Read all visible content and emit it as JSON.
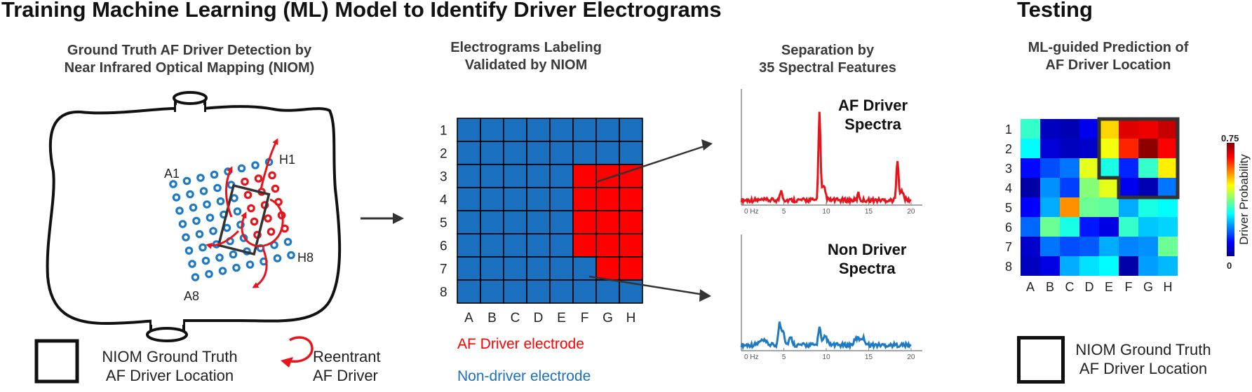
{
  "titles": {
    "training": "Training Machine Learning (ML) Model to Identify Driver Electrograms",
    "testing": "Testing"
  },
  "panel1": {
    "heading_line1": "Ground Truth AF Driver Detection by",
    "heading_line2": "Near Infrared Optical Mapping (NIOM)",
    "labels": {
      "a1": "A1",
      "h1": "H1",
      "a8": "A8",
      "h8": "H8"
    },
    "electrode_color": "#1f7ac4",
    "driver_color": "#e8141c",
    "legend": {
      "box_line1": "NIOM Ground Truth",
      "box_line2": "AF Driver Location",
      "reentrant_line1": "Reentrant",
      "reentrant_line2": "AF Driver"
    }
  },
  "panel2": {
    "heading_line1": "Electrograms Labeling",
    "heading_line2": "Validated by NIOM",
    "rows": [
      "1",
      "2",
      "3",
      "4",
      "5",
      "6",
      "7",
      "8"
    ],
    "cols": [
      "A",
      "B",
      "C",
      "D",
      "E",
      "F",
      "G",
      "H"
    ],
    "driver_cells": [
      [
        2,
        5
      ],
      [
        2,
        6
      ],
      [
        2,
        7
      ],
      [
        3,
        5
      ],
      [
        3,
        6
      ],
      [
        3,
        7
      ],
      [
        4,
        5
      ],
      [
        4,
        6
      ],
      [
        4,
        7
      ],
      [
        5,
        5
      ],
      [
        5,
        6
      ],
      [
        5,
        7
      ],
      [
        6,
        6
      ],
      [
        6,
        7
      ]
    ],
    "non_driver_color": "#1a6fbf",
    "driver_color": "#ff0000",
    "legend_driver": "AF Driver electrode",
    "legend_non_driver": "Non-driver electrode"
  },
  "panel3": {
    "heading_line1": "Separation by",
    "heading_line2": "35 Spectral Features",
    "driver_label_line1": "AF Driver",
    "driver_label_line2": "Spectra",
    "non_driver_label_line1": "Non Driver",
    "non_driver_label_line2": "Spectra",
    "x_ticks": [
      "0 Hz",
      "5",
      "10",
      "15",
      "20"
    ]
  },
  "panel4": {
    "heading_line1": "ML-guided Prediction of",
    "heading_line2": "AF Driver Location",
    "rows": [
      "1",
      "2",
      "3",
      "4",
      "5",
      "6",
      "7",
      "8"
    ],
    "cols": [
      "A",
      "B",
      "C",
      "D",
      "E",
      "F",
      "G",
      "H"
    ],
    "colorbar_max": "0.75",
    "colorbar_min": "0",
    "colorbar_label": "Driver Probability",
    "legend_line1": "NIOM Ground Truth",
    "legend_line2": "AF Driver Location"
  },
  "chart_data": {
    "type": "heatmap",
    "x_categories": [
      "A",
      "B",
      "C",
      "D",
      "E",
      "F",
      "G",
      "H"
    ],
    "y_categories": [
      "1",
      "2",
      "3",
      "4",
      "5",
      "6",
      "7",
      "8"
    ],
    "value_range": [
      0,
      0.75
    ],
    "colorbar_label": "Driver Probability",
    "values": [
      [
        0.32,
        0.04,
        0.03,
        0.08,
        0.5,
        0.68,
        0.67,
        0.7
      ],
      [
        0.28,
        0.06,
        0.04,
        0.05,
        0.46,
        0.63,
        0.74,
        0.66
      ],
      [
        0.1,
        0.15,
        0.18,
        0.45,
        0.3,
        0.12,
        0.32,
        0.48
      ],
      [
        0.02,
        0.2,
        0.14,
        0.38,
        0.45,
        0.08,
        0.03,
        0.18
      ],
      [
        0.09,
        0.22,
        0.55,
        0.36,
        0.35,
        0.22,
        0.3,
        0.28
      ],
      [
        0.17,
        0.36,
        0.3,
        0.11,
        0.07,
        0.32,
        0.24,
        0.25
      ],
      [
        0.05,
        0.18,
        0.15,
        0.16,
        0.22,
        0.19,
        0.2,
        0.36
      ],
      [
        0.04,
        0.07,
        0.22,
        0.26,
        0.28,
        0.02,
        0.21,
        0.23
      ]
    ]
  }
}
